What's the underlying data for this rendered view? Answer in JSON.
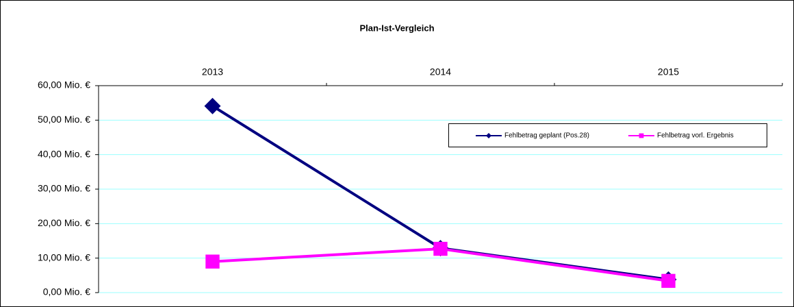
{
  "chart_data": {
    "type": "line",
    "title": "Plan-Ist-Vergleich",
    "categories": [
      "2013",
      "2014",
      "2015"
    ],
    "series": [
      {
        "name": "Fehlbetrag geplant (Pos.28)",
        "color": "#000080",
        "marker": "diamond",
        "values": [
          54.1,
          12.9,
          3.8
        ]
      },
      {
        "name": "Fehlbetrag vorl. Ergebnis",
        "color": "#ff00ff",
        "marker": "square",
        "values": [
          9.0,
          12.7,
          3.4
        ]
      }
    ],
    "ylim": [
      0,
      60
    ],
    "yticks": [
      {
        "value": 0,
        "label": "0,00 Mio. €"
      },
      {
        "value": 10,
        "label": "10,00 Mio. €"
      },
      {
        "value": 20,
        "label": "20,00 Mio. €"
      },
      {
        "value": 30,
        "label": "30,00 Mio. €"
      },
      {
        "value": 40,
        "label": "40,00 Mio. €"
      },
      {
        "value": 50,
        "label": "50,00 Mio. €"
      },
      {
        "value": 60,
        "label": "60,00 Mio. €"
      }
    ],
    "grid": true,
    "grid_color": "#99ffff",
    "xaxis_position": "top",
    "legend": "upper right"
  }
}
